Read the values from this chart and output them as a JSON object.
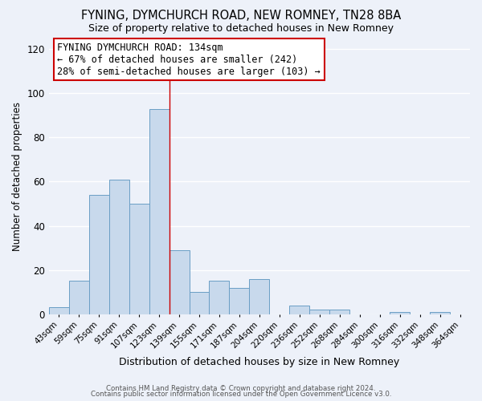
{
  "title": "FYNING, DYMCHURCH ROAD, NEW ROMNEY, TN28 8BA",
  "subtitle": "Size of property relative to detached houses in New Romney",
  "xlabel": "Distribution of detached houses by size in New Romney",
  "ylabel": "Number of detached properties",
  "bar_color": "#c8d9ec",
  "bar_edge_color": "#6a9ec5",
  "categories": [
    "43sqm",
    "59sqm",
    "75sqm",
    "91sqm",
    "107sqm",
    "123sqm",
    "139sqm",
    "155sqm",
    "171sqm",
    "187sqm",
    "204sqm",
    "220sqm",
    "236sqm",
    "252sqm",
    "268sqm",
    "284sqm",
    "300sqm",
    "316sqm",
    "332sqm",
    "348sqm",
    "364sqm"
  ],
  "values": [
    3,
    15,
    54,
    61,
    50,
    93,
    29,
    10,
    15,
    12,
    16,
    0,
    4,
    2,
    2,
    0,
    0,
    1,
    0,
    1,
    0
  ],
  "ylim": [
    0,
    125
  ],
  "yticks": [
    0,
    20,
    40,
    60,
    80,
    100,
    120
  ],
  "vline_x": 5.5,
  "vline_color": "#cc0000",
  "annotation_line1": "FYNING DYMCHURCH ROAD: 134sqm",
  "annotation_line2": "← 67% of detached houses are smaller (242)",
  "annotation_line3": "28% of semi-detached houses are larger (103) →",
  "annotation_box_edge_color": "#cc0000",
  "footer1": "Contains HM Land Registry data © Crown copyright and database right 2024.",
  "footer2": "Contains public sector information licensed under the Open Government Licence v3.0.",
  "background_color": "#edf1f9",
  "grid_color": "#ffffff",
  "title_fontsize": 10.5,
  "subtitle_fontsize": 9,
  "ylabel_fontsize": 8.5,
  "xlabel_fontsize": 9
}
